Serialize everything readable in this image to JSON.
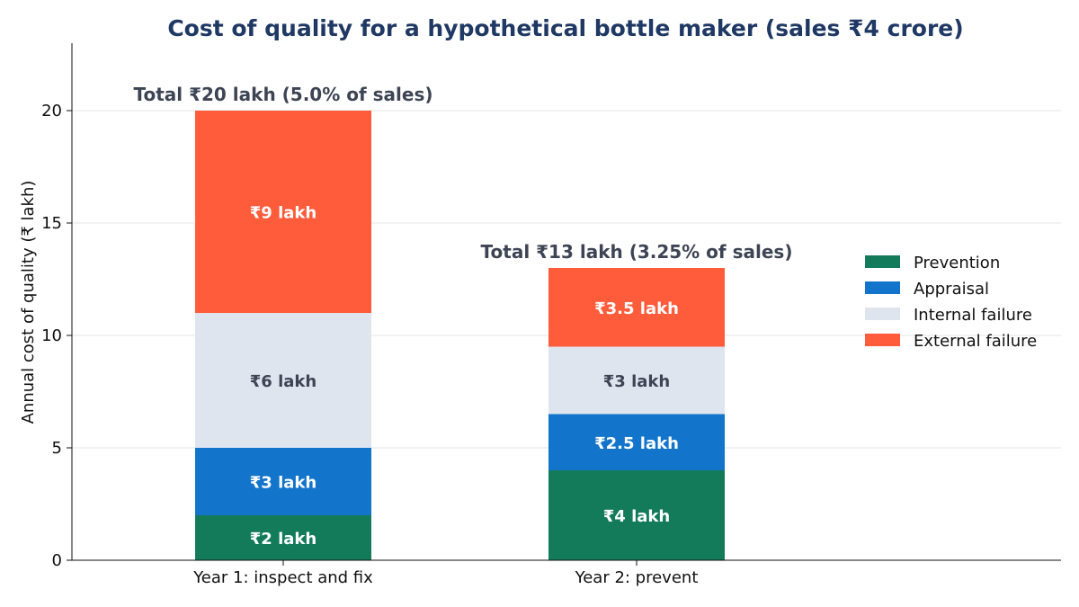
{
  "chart_data": {
    "type": "bar",
    "stacked": true,
    "title": "Cost of quality for a hypothetical bottle maker (sales ₹4 crore)",
    "ylabel": "Annual cost of quality (₹ lakh)",
    "xlabel": "",
    "ylim": [
      0,
      23
    ],
    "yticks": [
      "0",
      "5",
      "10",
      "15",
      "20"
    ],
    "categories": [
      "Year 1: inspect and fix",
      "Year 2: prevent"
    ],
    "series": [
      {
        "name": "Prevention",
        "values": [
          2,
          4
        ],
        "color": "#137b5a",
        "labels": [
          "₹2 lakh",
          "₹4 lakh"
        ],
        "label_color": "#ffffff"
      },
      {
        "name": "Appraisal",
        "values": [
          3,
          2.5
        ],
        "color": "#1274cb",
        "labels": [
          "₹3 lakh",
          "₹2.5 lakh"
        ],
        "label_color": "#ffffff"
      },
      {
        "name": "Internal failure",
        "values": [
          6,
          3
        ],
        "color": "#dfe5ef",
        "labels": [
          "₹6 lakh",
          "₹3 lakh"
        ],
        "label_color": "#3d4454"
      },
      {
        "name": "External failure",
        "values": [
          9,
          3.5
        ],
        "color": "#ff5c3b",
        "labels": [
          "₹9 lakh",
          "₹3.5 lakh"
        ],
        "label_color": "#ffffff"
      }
    ],
    "totals": [
      "Total ₹20 lakh (5.0% of sales)",
      "Total ₹13 lakh (3.25% of sales)"
    ],
    "grid": "horizontal",
    "legend_position": "right"
  }
}
